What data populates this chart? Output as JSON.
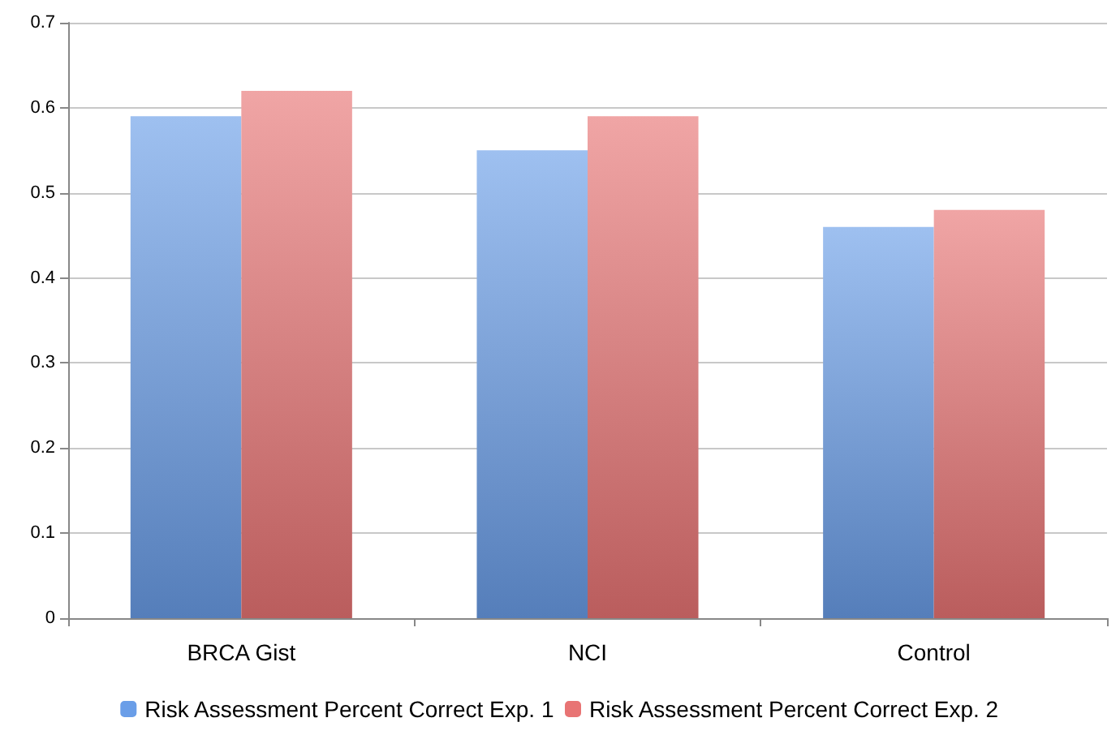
{
  "chart_data": {
    "type": "bar",
    "categories": [
      "BRCA Gist",
      "NCI",
      "Control"
    ],
    "series": [
      {
        "name": "Risk Assessment Percent Correct Exp. 1",
        "color": "#6a9ee8",
        "values": [
          0.59,
          0.55,
          0.46
        ]
      },
      {
        "name": "Risk Assessment Percent Correct Exp. 2",
        "color": "#e87474",
        "values": [
          0.62,
          0.59,
          0.48
        ]
      }
    ],
    "ylim": [
      0,
      0.7
    ],
    "yticks": [
      0,
      0.1,
      0.2,
      0.3,
      0.4,
      0.5,
      0.6,
      0.7
    ],
    "grid": "y",
    "legend": "bottom"
  }
}
